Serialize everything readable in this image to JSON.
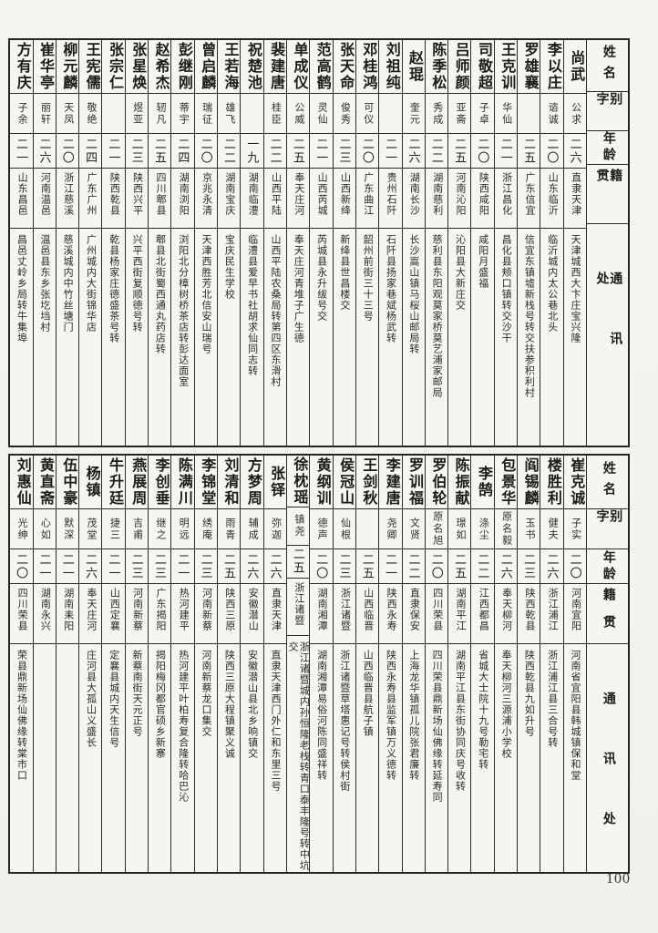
{
  "page_number": "100",
  "headers": {
    "name": "姓名",
    "courtesy": "别字",
    "age": "年龄",
    "origin": "籍贯",
    "address": "通讯处"
  },
  "sections": [
    {
      "people": [
        {
          "name": "尚武",
          "courtesy": "公求",
          "age": "二六",
          "origin": "直隶天津",
          "address": "天津城西大卞庄宝兴隆"
        },
        {
          "name": "李以庄",
          "courtesy": "谘诚",
          "age": "二〇",
          "origin": "山东临沂",
          "address": "临沂城内太公巷北头"
        },
        {
          "name": "罗雄襄",
          "courtesy": "",
          "age": "二五",
          "origin": "广东信宜",
          "address": "信宜东镇墟新栈号转交扶参积利村"
        },
        {
          "name": "王克训",
          "courtesy": "华仙",
          "age": "二一",
          "origin": "浙江昌化",
          "address": "昌化县颊口镇转交沙干"
        },
        {
          "name": "司敬超",
          "courtesy": "子卓",
          "age": "二〇",
          "origin": "陕西咸阳",
          "address": "咸阳月盛福"
        },
        {
          "name": "吕师颜",
          "courtesy": "亚斋",
          "age": "二五",
          "origin": "河南沁阳",
          "address": "沁阳县大新庄交"
        },
        {
          "name": "陈季松",
          "courtesy": "秀成",
          "age": "二二",
          "origin": "湖南慈利",
          "address": "慈利县东阳观莫家桥莫艺浦家邮局"
        },
        {
          "name": "赵琨",
          "courtesy": "奎元",
          "age": "二六",
          "origin": "湖南长沙",
          "address": "长沙嵩山镇马桜山邮局转"
        },
        {
          "name": "刘祖纯",
          "courtesy": "",
          "age": "二一",
          "origin": "贵州石阡",
          "address": "石阡县扬家巷斌杨武转"
        },
        {
          "name": "邓桂鸿",
          "courtesy": "可仪",
          "age": "二〇",
          "origin": "广东曲江",
          "address": "韶州前街三十三号"
        },
        {
          "name": "张天命",
          "courtesy": "俊秀",
          "age": "二三",
          "origin": "山西新绛",
          "address": "新绛县世昌楼交"
        },
        {
          "name": "范高鹤",
          "courtesy": "灵仙",
          "age": "二一",
          "origin": "山西芮城",
          "address": "芮城县永升绂号交"
        },
        {
          "name": "单成仪",
          "courtesy": "公威",
          "age": "二五",
          "origin": "奉天庄河",
          "address": "奉天庄河青堆子广生德"
        },
        {
          "name": "裴建唐",
          "courtesy": "桂臣",
          "age": "二二",
          "origin": "山西平陆",
          "address": "山西平陆农桑局转第四区东滑村"
        },
        {
          "name": "祝楚池",
          "courtesy": "",
          "age": "一九",
          "origin": "湖南临澧",
          "address": "临澧县爱早书社胡求仙同志转"
        },
        {
          "name": "王若海",
          "courtesy": "雄飞",
          "age": "二二",
          "origin": "湖南宝庆",
          "address": "宝庆民生学校"
        },
        {
          "name": "曾启麟",
          "courtesy": "瑞征",
          "age": "二〇",
          "origin": "京兆永清",
          "address": "天津西胜芳北信安山瑞号"
        },
        {
          "name": "彭继刚",
          "courtesy": "蒂宇",
          "age": "二四",
          "origin": "湖南浏阳",
          "address": "浏阳北分樟树桥茶店转彭达面室"
        },
        {
          "name": "赵希杰",
          "courtesy": "轫凡",
          "age": "二五",
          "origin": "四川郫县",
          "address": "郫县北街蜀西通丸药店转"
        },
        {
          "name": "张星焕",
          "courtesy": "煜亚",
          "age": "二三",
          "origin": "陕西兴平",
          "address": "兴平西街复顺德号转"
        },
        {
          "name": "张宗仁",
          "courtesy": "",
          "age": "二一",
          "origin": "陕西乾县",
          "address": "乾县杨家庄德盛茶号转"
        },
        {
          "name": "王宪儒",
          "courtesy": "敬绝",
          "age": "二四",
          "origin": "广东广州",
          "address": "广州城内大街锦华店"
        },
        {
          "name": "柳元麟",
          "courtesy": "天凤",
          "age": "二〇",
          "origin": "浙江慈溪",
          "address": "慈溪城内中竹丝塘门"
        },
        {
          "name": "崔华亭",
          "courtesy": "丽轩",
          "age": "二六",
          "origin": "河南温邑",
          "address": "温邑县东乡张圪垱村"
        },
        {
          "name": "方有庆",
          "courtesy": "子余",
          "age": "二一",
          "origin": "山东昌邑",
          "address": "昌邑丈岭乡局转牛集埠"
        }
      ]
    },
    {
      "people": [
        {
          "name": "崔克诚",
          "courtesy": "子实",
          "age": "二〇",
          "origin": "河南宜阳",
          "address": "河南省宜阳县韩城镇保和堂"
        },
        {
          "name": "楼胜利",
          "courtesy": "健夫",
          "age": "二六",
          "origin": "浙江浦江",
          "address": "浙江浦江县三合号转"
        },
        {
          "name": "阎锡麟",
          "courtesy": "玉书",
          "age": "二三",
          "origin": "陕西乾县",
          "address": "陕西乾县九如升号"
        },
        {
          "name": "包景华",
          "courtesy": "原名毅",
          "age": "二六",
          "origin": "奉天柳河",
          "address": "奉天柳河三源浦小学校"
        },
        {
          "name": "李鹄",
          "courtesy": "涤尘",
          "age": "二二",
          "origin": "江西都昌",
          "address": "省城大士院十九号勒宅转"
        },
        {
          "name": "陈振献",
          "courtesy": "璟如",
          "age": "二五",
          "origin": "湖南平江",
          "address": "湖南平江县东街协同庆号收转"
        },
        {
          "name": "罗伯轮",
          "courtesy": "原名旭",
          "age": "二〇",
          "origin": "四川荣县",
          "address": "四川荣县鼎新场仙佛缘转延寿同"
        },
        {
          "name": "罗训福",
          "courtesy": "文贤",
          "age": "二二",
          "origin": "直隶保安",
          "address": "上海龙华镇孤儿院张君廉转"
        },
        {
          "name": "李建唐",
          "courtesy": "尧卿",
          "age": "二一",
          "origin": "陕西永寿",
          "address": "陕西永寿县监军镇万义德转"
        },
        {
          "name": "王剑秋",
          "courtesy": "",
          "age": "二五",
          "origin": "山西临晋",
          "address": "山西临晋县航子镇"
        },
        {
          "name": "侯冠山",
          "courtesy": "仙根",
          "age": "二三",
          "origin": "浙江诸暨",
          "address": "浙江诸暨草塔惠记号转侯村街"
        },
        {
          "name": "黄纲训",
          "courtesy": "德声",
          "age": "二〇",
          "origin": "湖南湘潭",
          "address": "湖南湘潭易俗河陈同盛祥转"
        },
        {
          "name": "徐枕瑶",
          "courtesy": "镇尧",
          "age": "二五",
          "origin": "浙江诸暨",
          "address": "浙江诸暨城内孙恒隆老栈转青口泰丰隆号转中坑交"
        },
        {
          "name": "张铎",
          "courtesy": "弥迦",
          "age": "二六",
          "origin": "直隶天津",
          "address": "直隶天津西门外仁和东里三号"
        },
        {
          "name": "方梦周",
          "courtesy": "辅成",
          "age": "二六",
          "origin": "安徽潜山",
          "address": "安徽潜山县北乡响镇交"
        },
        {
          "name": "刘清和",
          "courtesy": "雨青",
          "age": "二五",
          "origin": "陕西三原",
          "address": "陕西三原大程镇聚义诚"
        },
        {
          "name": "李锦堂",
          "courtesy": "绣庵",
          "age": "二三",
          "origin": "河南新蔡",
          "address": "河南新蔡龙口集交"
        },
        {
          "name": "陈满川",
          "courtesy": "明远",
          "age": "二一",
          "origin": "热河建平",
          "address": "热河建平叶柏寿复合隆转哈巴沁"
        },
        {
          "name": "李创垂",
          "courtesy": "继之",
          "age": "二三",
          "origin": "广东揭阳",
          "address": "揭阳梅冈都官硕乡新寨"
        },
        {
          "name": "燕展周",
          "courtesy": "吉甫",
          "age": "二三",
          "origin": "河南新蔡",
          "address": "新蔡南街天元正号"
        },
        {
          "name": "牛升廷",
          "courtesy": "捷三",
          "age": "二一",
          "origin": "山西定襄",
          "address": "定襄县城内天生信号"
        },
        {
          "name": "杨镇",
          "courtesy": "茂堂",
          "age": "二六",
          "origin": "奉天庄河",
          "address": "庄河县大孤山义盛长"
        },
        {
          "name": "伍中豪",
          "courtesy": "默深",
          "age": "二一",
          "origin": "湖南耒阳",
          "address": ""
        },
        {
          "name": "黄直斋",
          "courtesy": "心如",
          "age": "二一",
          "origin": "湖南永兴",
          "address": ""
        },
        {
          "name": "刘惠仙",
          "courtesy": "光绅",
          "age": "二〇",
          "origin": "四川荣县",
          "address": "荣县鼎新场仙佛缘转棠市口"
        }
      ]
    }
  ]
}
